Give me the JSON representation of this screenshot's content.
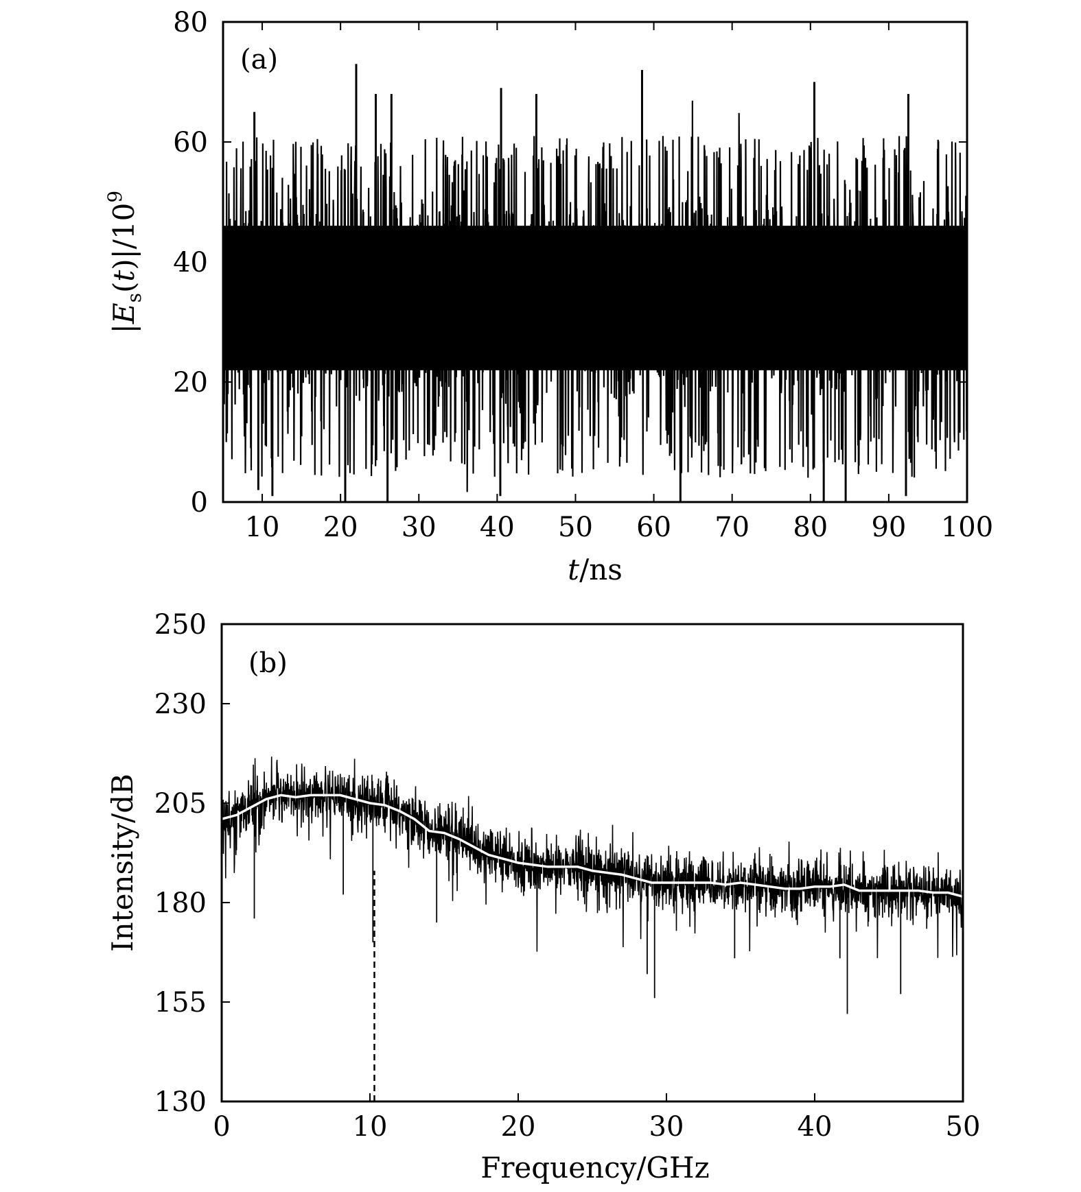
{
  "chart_data": [
    {
      "type": "line",
      "panel_label": "(a)",
      "xlabel": "t/ns",
      "ylabel": "|E_s(t)|/10^9",
      "xlim": [
        5,
        100
      ],
      "ylim": [
        0,
        80
      ],
      "xticks": [
        10,
        20,
        30,
        40,
        50,
        60,
        70,
        80,
        90,
        100
      ],
      "yticks": [
        0,
        20,
        40,
        60,
        80
      ],
      "grid": false,
      "series": [
        {
          "style": "dense noisy trace",
          "color": "#000000",
          "x_range": [
            5,
            100
          ],
          "mean": 34,
          "band_lower": 12,
          "band_upper": 55,
          "min_dips": [
            {
              "x": 9.5,
              "y": 2
            },
            {
              "x": 11.3,
              "y": 1
            },
            {
              "x": 20.6,
              "y": 0
            },
            {
              "x": 26.0,
              "y": 0
            },
            {
              "x": 40.4,
              "y": 1
            },
            {
              "x": 63.4,
              "y": 0
            },
            {
              "x": 81.7,
              "y": 0
            },
            {
              "x": 84.5,
              "y": 0
            },
            {
              "x": 92.2,
              "y": 1
            }
          ],
          "max_peaks": [
            {
              "x": 9.0,
              "y": 65
            },
            {
              "x": 22.0,
              "y": 73
            },
            {
              "x": 24.5,
              "y": 68
            },
            {
              "x": 26.5,
              "y": 68
            },
            {
              "x": 40.5,
              "y": 69
            },
            {
              "x": 45.0,
              "y": 68
            },
            {
              "x": 58.5,
              "y": 72
            },
            {
              "x": 80.5,
              "y": 70
            },
            {
              "x": 92.5,
              "y": 68
            }
          ]
        }
      ]
    },
    {
      "type": "line",
      "panel_label": "(b)",
      "xlabel": "Frequency/GHz",
      "ylabel": "Intensity/dB",
      "xlim": [
        0,
        50
      ],
      "ylim": [
        130,
        250
      ],
      "xticks": [
        0,
        10,
        20,
        30,
        40,
        50
      ],
      "yticks": [
        130,
        155,
        180,
        205,
        230,
        250
      ],
      "grid": false,
      "series": [
        {
          "style": "noisy spectrum",
          "color": "#000000",
          "x_range": [
            0,
            50
          ],
          "deep_dips": [
            {
              "x": 2.2,
              "y": 176
            },
            {
              "x": 8.2,
              "y": 182
            },
            {
              "x": 10.2,
              "y": 170
            },
            {
              "x": 14.5,
              "y": 175
            },
            {
              "x": 28.7,
              "y": 162
            },
            {
              "x": 29.2,
              "y": 156
            },
            {
              "x": 34.6,
              "y": 166
            },
            {
              "x": 41.7,
              "y": 166
            },
            {
              "x": 42.2,
              "y": 152
            },
            {
              "x": 45.8,
              "y": 157
            }
          ]
        },
        {
          "style": "smoothed average",
          "color": "#ffffff",
          "x": [
            0,
            1,
            2,
            3,
            4,
            5,
            6,
            7,
            8,
            9,
            10,
            11,
            12,
            13,
            14,
            15,
            16,
            17,
            18,
            19,
            20,
            21,
            22,
            23,
            24,
            25,
            26,
            27,
            28,
            29,
            30,
            31,
            32,
            33,
            34,
            35,
            36,
            37,
            38,
            39,
            40,
            41,
            42,
            43,
            44,
            45,
            46,
            47,
            48,
            49,
            50
          ],
          "y": [
            201,
            202,
            204,
            206,
            207,
            206.5,
            207,
            207,
            207,
            206,
            205,
            204.5,
            203,
            201,
            198,
            197.5,
            196,
            194,
            192,
            191,
            190,
            189.5,
            189,
            189,
            189,
            188,
            187.5,
            187,
            186,
            185,
            185,
            185,
            185,
            185,
            184.5,
            185,
            184.5,
            184,
            183.5,
            183.5,
            184,
            184,
            184.5,
            183,
            183,
            183,
            183,
            183,
            182.5,
            182.5,
            181.5
          ]
        }
      ],
      "annotations": [
        {
          "type": "vertical-dashed-line",
          "x": 10.3,
          "y_from": 130,
          "y_to": 188
        }
      ]
    }
  ]
}
